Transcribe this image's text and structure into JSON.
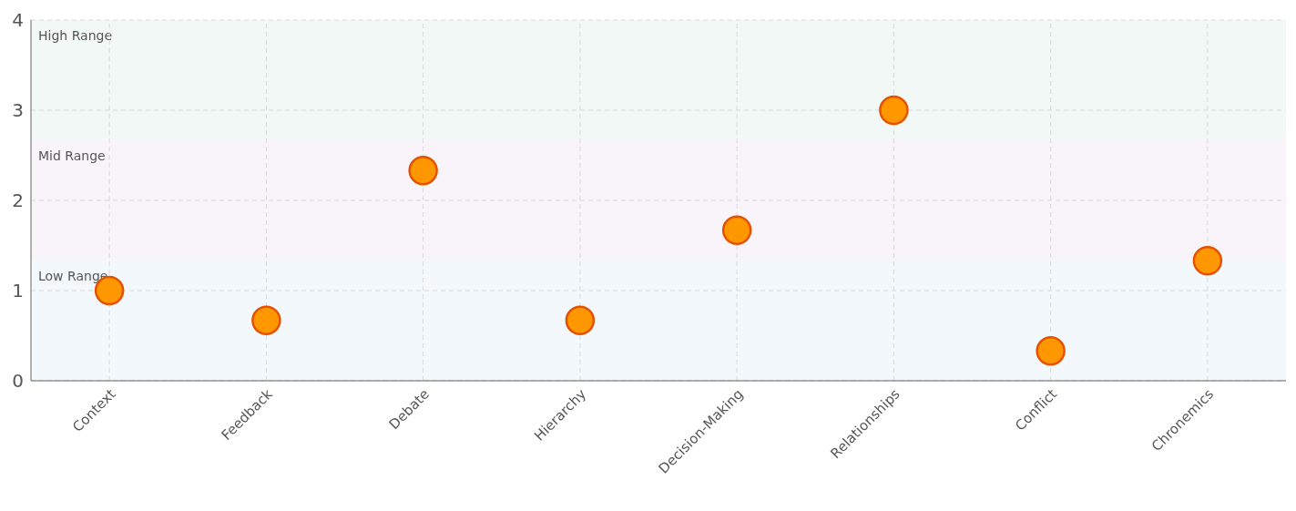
{
  "chart_data": {
    "type": "scatter",
    "categories": [
      "Context",
      "Feedback",
      "Debate",
      "Hierarchy",
      "Decision-Making",
      "Relationships",
      "Conflict",
      "Chronemics"
    ],
    "series": [
      {
        "color": "#ff9800",
        "values": [
          1,
          0.67,
          2.33,
          0.67,
          1.67,
          3,
          0.33,
          1.33
        ]
      }
    ],
    "ylim": [
      0,
      4
    ],
    "yticks": [
      0,
      1,
      2,
      3,
      4
    ],
    "grid": true,
    "marker": "circle",
    "bands": [
      {
        "axis": "y",
        "from": 0,
        "to": 1.33,
        "label": "Low Range",
        "color": "#f3f8fc"
      },
      {
        "axis": "y",
        "from": 1.33,
        "to": 2.67,
        "label": "Mid Range",
        "color": "#f9f4fa"
      },
      {
        "axis": "y",
        "from": 2.67,
        "to": 4,
        "label": "High Range",
        "color": "#f2f8f6"
      }
    ]
  }
}
